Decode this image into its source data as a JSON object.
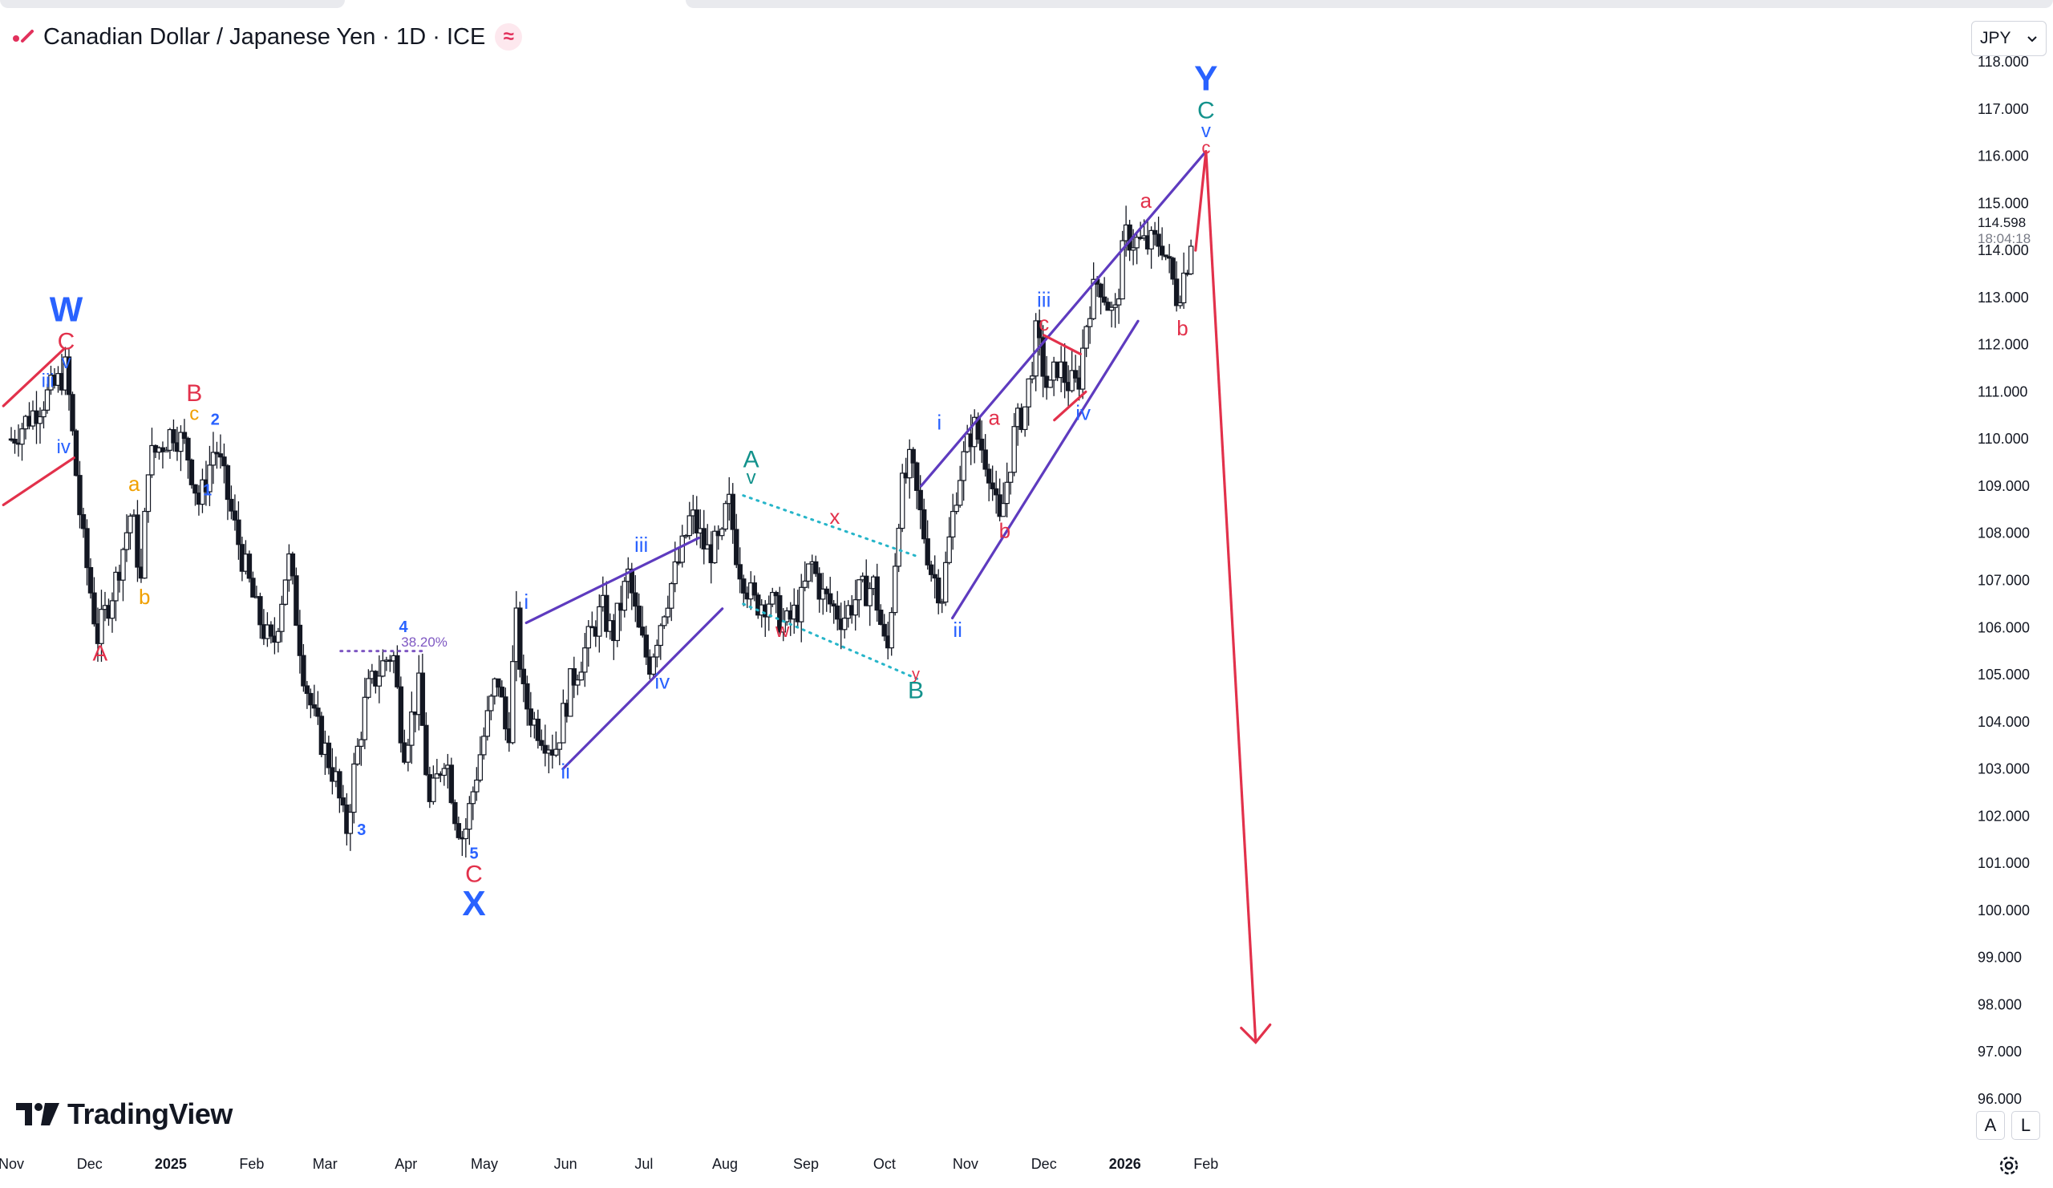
{
  "header": {
    "title": "Canadian Dollar / Japanese Yen · 1D · ICE",
    "badge": "≈"
  },
  "currency_select": {
    "value": "JPY"
  },
  "logo": {
    "text": "TradingView"
  },
  "scale_buttons": {
    "auto": "A",
    "log": "L"
  },
  "price_label": {
    "price": "114.598",
    "countdown": "18:04:18"
  },
  "colors": {
    "candle": "#131722",
    "wave_blue": "#2962ff",
    "wave_red": "#e2314b",
    "wave_orange": "#f0a000",
    "wave_teal": "#13928c",
    "channel_purple": "#5e3bbf",
    "dotted_cyan": "#26b5c9",
    "fib_purple": "#7e57c2"
  },
  "chart_data": {
    "type": "candlestick",
    "symbol": "CAD/JPY",
    "timeframe": "1D",
    "ylim": [
      96,
      118
    ],
    "y_ticks": [
      "96.000",
      "97.000",
      "98.000",
      "99.000",
      "100.000",
      "101.000",
      "102.000",
      "103.000",
      "104.000",
      "105.000",
      "106.000",
      "107.000",
      "108.000",
      "109.000",
      "110.000",
      "111.000",
      "112.000",
      "113.000",
      "114.000",
      "115.000",
      "116.000",
      "117.000",
      "118.000"
    ],
    "x_ticks": [
      {
        "label": "Nov",
        "t": 0
      },
      {
        "label": "Dec",
        "t": 30
      },
      {
        "label": "2025",
        "t": 61
      },
      {
        "label": "Feb",
        "t": 92
      },
      {
        "label": "Mar",
        "t": 120
      },
      {
        "label": "Apr",
        "t": 151
      },
      {
        "label": "May",
        "t": 181
      },
      {
        "label": "Jun",
        "t": 212
      },
      {
        "label": "Jul",
        "t": 242
      },
      {
        "label": "Aug",
        "t": 273
      },
      {
        "label": "Sep",
        "t": 304
      },
      {
        "label": "Oct",
        "t": 334
      },
      {
        "label": "Nov",
        "t": 365
      },
      {
        "label": "Dec",
        "t": 395
      },
      {
        "label": "2026",
        "t": 426
      },
      {
        "label": "Feb",
        "t": 457
      }
    ],
    "bold_x_ticks": [
      "2025",
      "2026"
    ],
    "price_path": [
      [
        0,
        110
      ],
      [
        18,
        111.2
      ],
      [
        21,
        111.5
      ],
      [
        27,
        108
      ],
      [
        33,
        105.8
      ],
      [
        40,
        107
      ],
      [
        46,
        108.5
      ],
      [
        50,
        106.8
      ],
      [
        52,
        109.5
      ],
      [
        62,
        110.2
      ],
      [
        67,
        109.8
      ],
      [
        72,
        108.6
      ],
      [
        78,
        109.9
      ],
      [
        86,
        108
      ],
      [
        94,
        106.3
      ],
      [
        100,
        105.5
      ],
      [
        106,
        107.5
      ],
      [
        112,
        105
      ],
      [
        116,
        104
      ],
      [
        124,
        102.8
      ],
      [
        128,
        101.6
      ],
      [
        131,
        102.9
      ],
      [
        136,
        104.6
      ],
      [
        143,
        105.3
      ],
      [
        146,
        105.5
      ],
      [
        150,
        103.4
      ],
      [
        156,
        104.7
      ],
      [
        160,
        102.2
      ],
      [
        166,
        103.4
      ],
      [
        170,
        102
      ],
      [
        173,
        101.5
      ],
      [
        180,
        103.5
      ],
      [
        186,
        105
      ],
      [
        190,
        103.5
      ],
      [
        193,
        106.2
      ],
      [
        196,
        104.5
      ],
      [
        200,
        104
      ],
      [
        208,
        103.4
      ],
      [
        214,
        104.8
      ],
      [
        220,
        105.6
      ],
      [
        226,
        106.4
      ],
      [
        230,
        105.8
      ],
      [
        236,
        107.1
      ],
      [
        240,
        105.9
      ],
      [
        244,
        105.2
      ],
      [
        250,
        106.5
      ],
      [
        256,
        107.5
      ],
      [
        260,
        108.4
      ],
      [
        266,
        107.6
      ],
      [
        272,
        107.8
      ],
      [
        274,
        108.8
      ],
      [
        278,
        107.4
      ],
      [
        284,
        106.5
      ],
      [
        290,
        106.6
      ],
      [
        296,
        106
      ],
      [
        302,
        106.5
      ],
      [
        306,
        107.4
      ],
      [
        310,
        106.7
      ],
      [
        318,
        106.2
      ],
      [
        324,
        106.7
      ],
      [
        330,
        106.9
      ],
      [
        335,
        105.3
      ],
      [
        340,
        108.8
      ],
      [
        344,
        109.5
      ],
      [
        348,
        108.3
      ],
      [
        352,
        107.2
      ],
      [
        356,
        106.7
      ],
      [
        362,
        109.1
      ],
      [
        368,
        110.3
      ],
      [
        374,
        109.4
      ],
      [
        378,
        108.1
      ],
      [
        384,
        110.2
      ],
      [
        388,
        110.7
      ],
      [
        392,
        112.2
      ],
      [
        397,
        110.9
      ],
      [
        400,
        111.6
      ],
      [
        404,
        111.2
      ],
      [
        408,
        111.1
      ],
      [
        412,
        112.8
      ],
      [
        416,
        113.4
      ],
      [
        422,
        112.5
      ],
      [
        426,
        114.3
      ],
      [
        434,
        114.1
      ],
      [
        440,
        114.2
      ],
      [
        444,
        113.4
      ],
      [
        446,
        113
      ],
      [
        450,
        113.8
      ],
      [
        452,
        114.6
      ]
    ],
    "annotations": [
      {
        "text": "W",
        "t": 21,
        "p": 112.5,
        "color": "wave_blue",
        "size": 44,
        "bold": true
      },
      {
        "text": "C",
        "t": 21,
        "p": 111.9,
        "color": "wave_red",
        "size": 30
      },
      {
        "text": "v",
        "t": 21,
        "p": 111.5,
        "color": "wave_blue",
        "size": 24
      },
      {
        "text": "iii",
        "t": 14,
        "p": 111.1,
        "color": "wave_blue",
        "size": 24
      },
      {
        "text": "iv",
        "t": 20,
        "p": 109.7,
        "color": "wave_blue",
        "size": 24
      },
      {
        "text": "A",
        "t": 34,
        "p": 105.3,
        "color": "wave_red",
        "size": 28
      },
      {
        "text": "a",
        "t": 47,
        "p": 108.9,
        "color": "wave_orange",
        "size": 26
      },
      {
        "text": "b",
        "t": 51,
        "p": 106.5,
        "color": "wave_orange",
        "size": 26
      },
      {
        "text": "B",
        "t": 70,
        "p": 110.8,
        "color": "wave_red",
        "size": 30
      },
      {
        "text": "c",
        "t": 70,
        "p": 110.4,
        "color": "wave_orange",
        "size": 24
      },
      {
        "text": "2",
        "t": 78,
        "p": 110.3,
        "color": "wave_blue",
        "size": 20,
        "bold": true
      },
      {
        "text": "1",
        "t": 75,
        "p": 108.8,
        "color": "wave_blue",
        "size": 20,
        "bold": true
      },
      {
        "text": "38.20%",
        "t": 158,
        "p": 105.6,
        "color": "fib_purple",
        "size": 17
      },
      {
        "text": "4",
        "t": 150,
        "p": 105.9,
        "color": "wave_blue",
        "size": 20,
        "bold": true
      },
      {
        "text": "3",
        "t": 134,
        "p": 101.6,
        "color": "wave_blue",
        "size": 20,
        "bold": true
      },
      {
        "text": "5",
        "t": 177,
        "p": 101.1,
        "color": "wave_blue",
        "size": 20,
        "bold": true
      },
      {
        "text": "C",
        "t": 177,
        "p": 100.6,
        "color": "wave_red",
        "size": 30
      },
      {
        "text": "X",
        "t": 177,
        "p": 99.9,
        "color": "wave_blue",
        "size": 44,
        "bold": true
      },
      {
        "text": "i",
        "t": 197,
        "p": 106.4,
        "color": "wave_blue",
        "size": 26
      },
      {
        "text": "ii",
        "t": 212,
        "p": 102.8,
        "color": "wave_blue",
        "size": 26
      },
      {
        "text": "iii",
        "t": 241,
        "p": 107.6,
        "color": "wave_blue",
        "size": 26
      },
      {
        "text": "iv",
        "t": 249,
        "p": 104.7,
        "color": "wave_blue",
        "size": 26
      },
      {
        "text": "A",
        "t": 283,
        "p": 109.4,
        "color": "wave_teal",
        "size": 30
      },
      {
        "text": "v",
        "t": 283,
        "p": 109.05,
        "color": "wave_teal",
        "size": 24
      },
      {
        "text": "w",
        "t": 295,
        "p": 105.8,
        "color": "wave_red",
        "size": 24
      },
      {
        "text": "x",
        "t": 315,
        "p": 108.2,
        "color": "wave_red",
        "size": 26
      },
      {
        "text": "y",
        "t": 346,
        "p": 104.9,
        "color": "wave_red",
        "size": 20
      },
      {
        "text": "B",
        "t": 346,
        "p": 104.5,
        "color": "wave_teal",
        "size": 30
      },
      {
        "text": "i",
        "t": 355,
        "p": 110.2,
        "color": "wave_blue",
        "size": 26
      },
      {
        "text": "ii",
        "t": 362,
        "p": 105.8,
        "color": "wave_blue",
        "size": 26
      },
      {
        "text": "a",
        "t": 376,
        "p": 110.3,
        "color": "wave_red",
        "size": 26
      },
      {
        "text": "b",
        "t": 380,
        "p": 107.9,
        "color": "wave_red",
        "size": 26
      },
      {
        "text": "iii",
        "t": 395,
        "p": 112.8,
        "color": "wave_blue",
        "size": 26
      },
      {
        "text": "c",
        "t": 395,
        "p": 112.3,
        "color": "wave_red",
        "size": 26
      },
      {
        "text": "iv",
        "t": 410,
        "p": 110.4,
        "color": "wave_blue",
        "size": 26
      },
      {
        "text": "a",
        "t": 434,
        "p": 114.9,
        "color": "wave_red",
        "size": 26
      },
      {
        "text": "b",
        "t": 448,
        "p": 112.2,
        "color": "wave_red",
        "size": 26
      },
      {
        "text": "Y",
        "t": 457,
        "p": 117.4,
        "color": "wave_blue",
        "size": 44,
        "bold": true
      },
      {
        "text": "C",
        "t": 457,
        "p": 116.8,
        "color": "wave_teal",
        "size": 30
      },
      {
        "text": "v",
        "t": 457,
        "p": 116.4,
        "color": "wave_blue",
        "size": 24
      },
      {
        "text": "c",
        "t": 457,
        "p": 116.05,
        "color": "wave_red",
        "size": 22
      }
    ],
    "lines": [
      {
        "from": [
          -3,
          110.7
        ],
        "to": [
          20,
          111.9
        ],
        "color": "wave_red",
        "dash": false
      },
      {
        "from": [
          -3,
          108.6
        ],
        "to": [
          24,
          109.6
        ],
        "color": "wave_red",
        "dash": false
      },
      {
        "from": [
          126,
          105.5
        ],
        "to": [
          157,
          105.5
        ],
        "color": "fib_purple",
        "dash": true
      },
      {
        "from": [
          197,
          106.1
        ],
        "to": [
          263,
          107.9
        ],
        "color": "channel_purple",
        "dash": false
      },
      {
        "from": [
          211,
          103
        ],
        "to": [
          272,
          106.4
        ],
        "color": "channel_purple",
        "dash": false
      },
      {
        "from": [
          280,
          108.8
        ],
        "to": [
          347,
          107.5
        ],
        "color": "dotted_cyan",
        "dash": true
      },
      {
        "from": [
          280,
          106.5
        ],
        "to": [
          347,
          104.9
        ],
        "color": "dotted_cyan",
        "dash": true
      },
      {
        "from": [
          348,
          109
        ],
        "to": [
          457,
          116.1
        ],
        "color": "channel_purple",
        "dash": false
      },
      {
        "from": [
          360,
          106.2
        ],
        "to": [
          431,
          112.5
        ],
        "color": "channel_purple",
        "dash": false
      },
      {
        "from": [
          395,
          112.2
        ],
        "to": [
          409,
          111.8
        ],
        "color": "wave_red",
        "dash": false
      },
      {
        "from": [
          399,
          110.4
        ],
        "to": [
          411,
          111
        ],
        "color": "wave_red",
        "dash": false
      },
      {
        "from": [
          453,
          114
        ],
        "to": [
          457,
          116.1
        ],
        "color": "wave_red",
        "dash": false
      }
    ],
    "projection": {
      "from": [
        457,
        116.1
      ],
      "to": [
        476,
        97.2
      ],
      "color": "wave_red"
    }
  }
}
